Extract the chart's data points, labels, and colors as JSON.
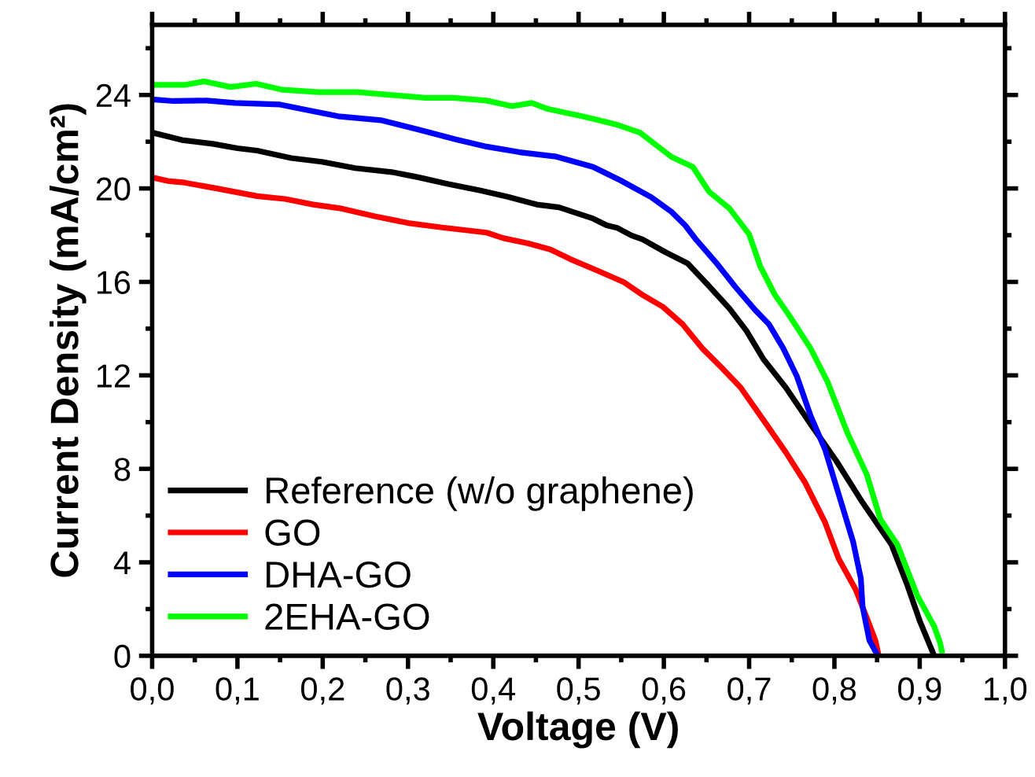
{
  "chart_data": {
    "type": "line",
    "xlabel": "Voltage (V)",
    "ylabel": "Current Density (mA/cm²)",
    "xlim": [
      0,
      1.0
    ],
    "ylim": [
      0,
      27
    ],
    "xticks": [
      {
        "value": 0,
        "label": "0,0"
      },
      {
        "value": 0.1,
        "label": "0,1"
      },
      {
        "value": 0.2,
        "label": "0,2"
      },
      {
        "value": 0.3,
        "label": "0,3"
      },
      {
        "value": 0.4,
        "label": "0,4"
      },
      {
        "value": 0.5,
        "label": "0,5"
      },
      {
        "value": 0.6,
        "label": "0,6"
      },
      {
        "value": 0.7,
        "label": "0,7"
      },
      {
        "value": 0.8,
        "label": "0,8"
      },
      {
        "value": 0.9,
        "label": "0,9"
      },
      {
        "value": 1.0,
        "label": "1,0"
      }
    ],
    "yticks": [
      0,
      4,
      8,
      12,
      16,
      20,
      24
    ],
    "grid": false,
    "legend": "bottom left",
    "marker": "none",
    "line_style": "solid",
    "series": [
      {
        "name": "Reference (w/o graphene)",
        "color": "#000000",
        "x": [
          0,
          0.035,
          0.071,
          0.1,
          0.123,
          0.163,
          0.199,
          0.238,
          0.281,
          0.313,
          0.346,
          0.385,
          0.418,
          0.451,
          0.477,
          0.517,
          0.533,
          0.546,
          0.562,
          0.575,
          0.602,
          0.628,
          0.651,
          0.677,
          0.697,
          0.717,
          0.743,
          0.772,
          0.802,
          0.831,
          0.867,
          0.885,
          0.9,
          0.917
        ],
        "values": [
          22.39,
          22.07,
          21.91,
          21.72,
          21.62,
          21.3,
          21.14,
          20.87,
          20.7,
          20.47,
          20.2,
          19.91,
          19.63,
          19.31,
          19.19,
          18.71,
          18.42,
          18.3,
          17.99,
          17.82,
          17.27,
          16.79,
          15.9,
          14.86,
          13.9,
          12.68,
          11.48,
          9.92,
          8.35,
          6.67,
          4.75,
          3.07,
          1.5,
          0
        ]
      },
      {
        "name": "GO",
        "color": "#ff0000",
        "x": [
          0,
          0.018,
          0.038,
          0.077,
          0.123,
          0.156,
          0.189,
          0.222,
          0.261,
          0.3,
          0.34,
          0.392,
          0.412,
          0.441,
          0.467,
          0.49,
          0.523,
          0.553,
          0.576,
          0.599,
          0.622,
          0.645,
          0.668,
          0.69,
          0.72,
          0.743,
          0.766,
          0.789,
          0.805,
          0.825,
          0.838,
          0.848,
          0.852
        ],
        "values": [
          20.47,
          20.32,
          20.25,
          19.99,
          19.67,
          19.55,
          19.31,
          19.14,
          18.81,
          18.52,
          18.33,
          18.11,
          17.87,
          17.65,
          17.39,
          16.98,
          16.47,
          15.99,
          15.42,
          14.93,
          14.19,
          13.16,
          12.32,
          11.48,
          9.92,
          8.71,
          7.39,
          5.71,
          4.15,
          2.83,
          1.62,
          0.66,
          0
        ]
      },
      {
        "name": "DHA-GO",
        "color": "#0000ff",
        "x": [
          0,
          0.025,
          0.064,
          0.097,
          0.15,
          0.182,
          0.218,
          0.268,
          0.313,
          0.356,
          0.392,
          0.431,
          0.474,
          0.517,
          0.549,
          0.585,
          0.609,
          0.625,
          0.638,
          0.661,
          0.684,
          0.707,
          0.723,
          0.74,
          0.756,
          0.772,
          0.789,
          0.805,
          0.822,
          0.831,
          0.833,
          0.841,
          0.851
        ],
        "values": [
          23.81,
          23.74,
          23.76,
          23.66,
          23.59,
          23.35,
          23.09,
          22.92,
          22.51,
          22.1,
          21.79,
          21.55,
          21.36,
          20.92,
          20.35,
          19.63,
          19.0,
          18.42,
          17.8,
          16.84,
          15.78,
          14.8,
          14.2,
          13.16,
          11.96,
          10.28,
          8.83,
          6.91,
          4.87,
          3.31,
          2.11,
          0.66,
          0
        ]
      },
      {
        "name": "2EHA-GO",
        "color": "#00ff00",
        "x": [
          0,
          0.038,
          0.061,
          0.092,
          0.122,
          0.153,
          0.195,
          0.241,
          0.32,
          0.353,
          0.392,
          0.422,
          0.445,
          0.464,
          0.504,
          0.543,
          0.572,
          0.609,
          0.634,
          0.653,
          0.677,
          0.7,
          0.713,
          0.73,
          0.746,
          0.772,
          0.792,
          0.815,
          0.838,
          0.854,
          0.874,
          0.897,
          0.917,
          0.924,
          0.927
        ],
        "values": [
          24.43,
          24.43,
          24.58,
          24.34,
          24.48,
          24.22,
          24.12,
          24.12,
          23.88,
          23.88,
          23.76,
          23.52,
          23.66,
          23.4,
          23.09,
          22.75,
          22.39,
          21.35,
          20.92,
          19.86,
          19.14,
          18.04,
          16.67,
          15.46,
          14.62,
          13.16,
          11.72,
          9.56,
          7.75,
          5.83,
          4.75,
          2.59,
          1.26,
          0.54,
          0
        ]
      }
    ]
  }
}
